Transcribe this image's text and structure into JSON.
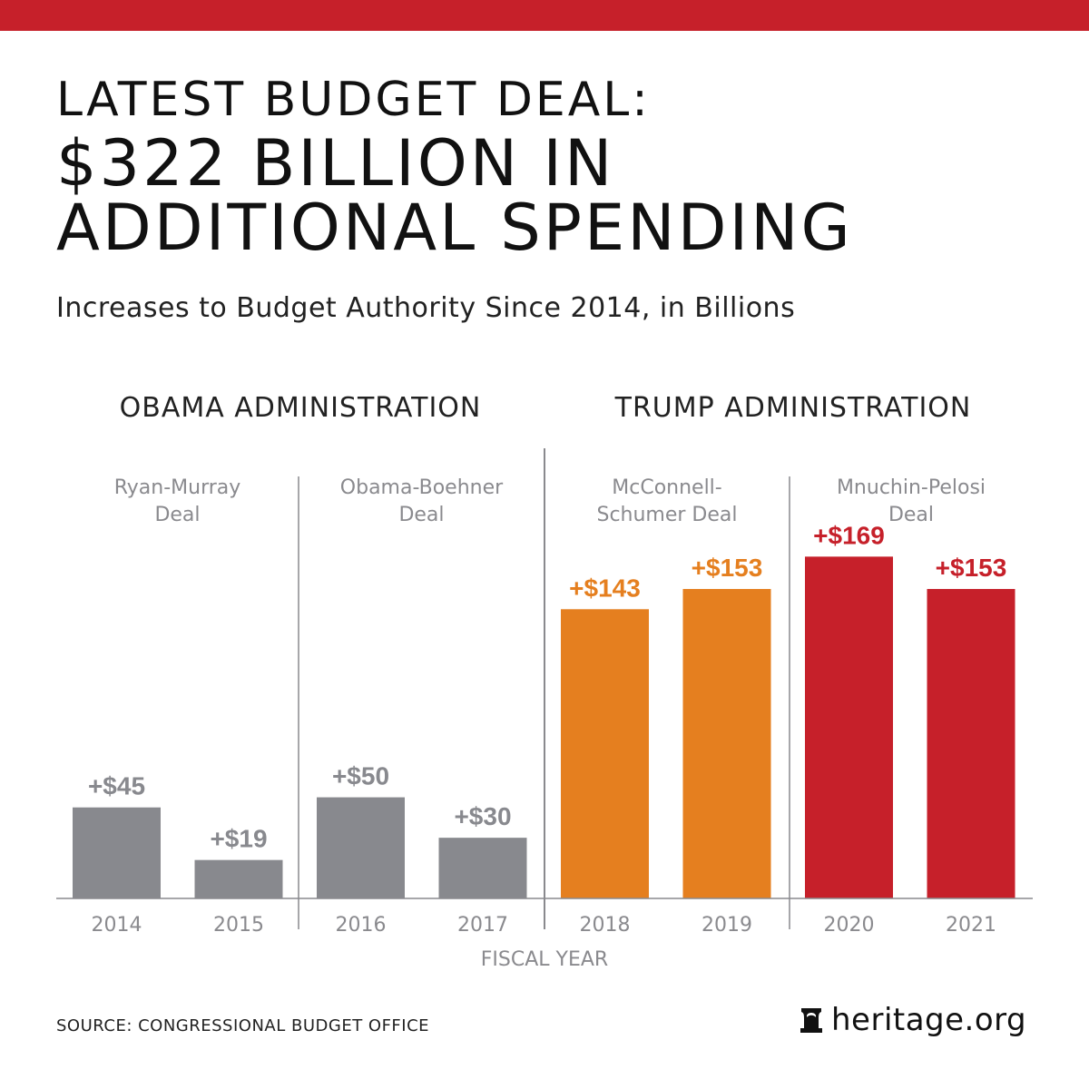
{
  "colors": {
    "brand_red": "#c6202a",
    "obama_gray": "#88898e",
    "trump_orange": "#e57f1f",
    "trump_red": "#c6202a",
    "axis": "#8a8a8e",
    "text_dark": "#111111"
  },
  "header": {
    "title_line1": "LATEST BUDGET DEAL:",
    "title_line2": "$322 BILLION IN",
    "title_line3": "ADDITIONAL SPENDING",
    "subtitle": "Increases to Budget Authority Since 2014, in Billions"
  },
  "administrations": [
    {
      "label": "OBAMA ADMINISTRATION"
    },
    {
      "label": "TRUMP ADMINISTRATION"
    }
  ],
  "deals": [
    {
      "label": "Ryan-Murray\nDeal"
    },
    {
      "label": "Obama-Boehner\nDeal"
    },
    {
      "label": "McConnell-\nSchumer Deal"
    },
    {
      "label": "Mnuchin-Pelosi\nDeal"
    }
  ],
  "chart_data": {
    "type": "bar",
    "title": "Increases to Budget Authority Since 2014, in Billions",
    "xlabel": "FISCAL YEAR",
    "ylabel": "",
    "categories": [
      "2014",
      "2015",
      "2016",
      "2017",
      "2018",
      "2019",
      "2020",
      "2021"
    ],
    "values": [
      45,
      19,
      50,
      30,
      143,
      153,
      169,
      153
    ],
    "value_labels": [
      "+$45",
      "+$19",
      "+$50",
      "+$30",
      "+$143",
      "+$153",
      "+$169",
      "+$153"
    ],
    "groups": [
      "Ryan-Murray Deal",
      "Ryan-Murray Deal",
      "Obama-Boehner Deal",
      "Obama-Boehner Deal",
      "McConnell-Schumer Deal",
      "McConnell-Schumer Deal",
      "Mnuchin-Pelosi Deal",
      "Mnuchin-Pelosi Deal"
    ],
    "bar_colors": [
      "#88898e",
      "#88898e",
      "#88898e",
      "#88898e",
      "#e57f1f",
      "#e57f1f",
      "#c6202a",
      "#c6202a"
    ],
    "ylim": [
      0,
      175
    ],
    "grid": false,
    "legend": "none"
  },
  "footer": {
    "source": "SOURCE: CONGRESSIONAL BUDGET OFFICE",
    "logo_text": "heritage.org",
    "logo_icon": "liberty-bell-icon"
  }
}
